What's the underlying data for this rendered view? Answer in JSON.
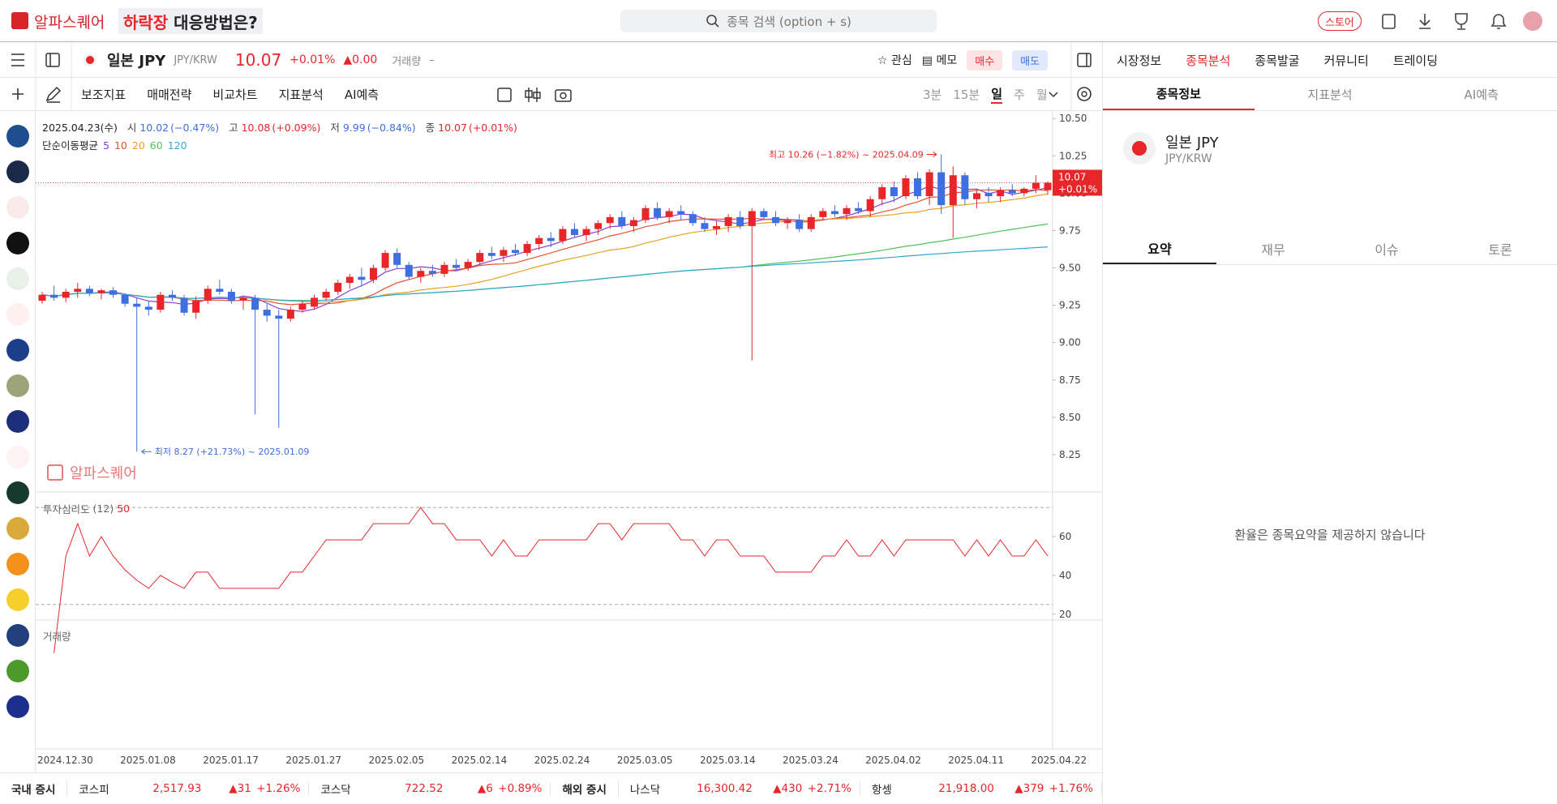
{
  "header": {
    "logo": "알파스퀘어",
    "banner_a": "하락장",
    "banner_b": "대응방법은?",
    "search": "종목 검색 (option + s)",
    "store": "스토어"
  },
  "stock_bar": {
    "name": "일본 JPY",
    "code": "JPY/KRW",
    "price": "10.07",
    "change_pct": "+0.01%",
    "change": "▲0.00",
    "volume_label": "거래량",
    "volume": "–",
    "buttons": [
      "관심",
      "메모",
      "매수",
      "매도"
    ]
  },
  "nav": [
    "시장정보",
    "종목분석",
    "종목발굴",
    "커뮤니티",
    "트레이딩"
  ],
  "toolbar": {
    "tools": [
      "보조지표",
      "매매전략",
      "비교차트",
      "지표분석",
      "AI예측"
    ],
    "periods": [
      "3분",
      "15분",
      "일",
      "주",
      "월"
    ]
  },
  "chart_data": {
    "type": "candlestick",
    "date": "2025.04.23(수)",
    "ohlc_labels": [
      {
        "label": "시",
        "value": "10.02",
        "pct": "(−0.47%)"
      },
      {
        "label": "고",
        "value": "10.08",
        "pct": "(+0.09%)"
      },
      {
        "label": "저",
        "value": "9.99",
        "pct": "(−0.84%)"
      },
      {
        "label": "종",
        "value": "10.07",
        "pct": "(+0.01%)"
      }
    ],
    "ma_label": "단순이동평균",
    "ma": [
      {
        "period": 5,
        "color": "#8a3fd1"
      },
      {
        "period": 10,
        "color": "#e5532d"
      },
      {
        "period": 20,
        "color": "#e8a21c"
      },
      {
        "period": 60,
        "color": "#4fc45a"
      },
      {
        "period": 120,
        "color": "#2fa9cf"
      }
    ],
    "up_color": "#e8262a",
    "down_color": "#3d6fe0",
    "categories": [
      "2024.12.30",
      null,
      null,
      null,
      null,
      null,
      null,
      "2025.01.08",
      null,
      null,
      null,
      null,
      null,
      null,
      "2025.01.17",
      null,
      null,
      null,
      null,
      null,
      null,
      "2025.01.27",
      null,
      null,
      null,
      null,
      null,
      null,
      "2025.02.05",
      null,
      null,
      null,
      null,
      null,
      null,
      "2025.02.14",
      null,
      null,
      null,
      null,
      null,
      null,
      "2025.02.24",
      null,
      null,
      null,
      null,
      null,
      null,
      "2025.03.05",
      null,
      null,
      null,
      null,
      null,
      null,
      "2025.03.14",
      null,
      null,
      null,
      null,
      null,
      null,
      "2025.03.24",
      null,
      null,
      null,
      null,
      null,
      null,
      "2025.04.02",
      null,
      null,
      null,
      null,
      null,
      null,
      "2025.04.11",
      null,
      null,
      null,
      null,
      null,
      null,
      "2025.04.22",
      null
    ],
    "candles": [
      [
        9.28,
        9.34,
        9.26,
        9.32
      ],
      [
        9.32,
        9.38,
        9.28,
        9.3
      ],
      [
        9.3,
        9.36,
        9.27,
        9.34
      ],
      [
        9.34,
        9.4,
        9.3,
        9.36
      ],
      [
        9.36,
        9.38,
        9.31,
        9.33
      ],
      [
        9.33,
        9.36,
        9.29,
        9.35
      ],
      [
        9.35,
        9.37,
        9.3,
        9.32
      ],
      [
        9.32,
        9.33,
        9.24,
        9.26
      ],
      [
        9.26,
        9.3,
        8.27,
        9.24
      ],
      [
        9.24,
        9.28,
        9.18,
        9.22
      ],
      [
        9.22,
        9.34,
        9.2,
        9.32
      ],
      [
        9.32,
        9.35,
        9.28,
        9.3
      ],
      [
        9.3,
        9.32,
        9.18,
        9.2
      ],
      [
        9.2,
        9.31,
        9.16,
        9.28
      ],
      [
        9.28,
        9.38,
        9.26,
        9.36
      ],
      [
        9.36,
        9.42,
        9.32,
        9.34
      ],
      [
        9.34,
        9.36,
        9.26,
        9.28
      ],
      [
        9.28,
        9.31,
        9.22,
        9.3
      ],
      [
        9.3,
        9.32,
        8.52,
        9.22
      ],
      [
        9.22,
        9.26,
        9.14,
        9.18
      ],
      [
        9.18,
        9.22,
        8.43,
        9.16
      ],
      [
        9.16,
        9.24,
        9.14,
        9.22
      ],
      [
        9.22,
        9.28,
        9.2,
        9.26
      ],
      [
        9.24,
        9.32,
        9.22,
        9.3
      ],
      [
        9.3,
        9.36,
        9.28,
        9.34
      ],
      [
        9.34,
        9.42,
        9.32,
        9.4
      ],
      [
        9.4,
        9.46,
        9.36,
        9.44
      ],
      [
        9.44,
        9.5,
        9.38,
        9.42
      ],
      [
        9.42,
        9.52,
        9.4,
        9.5
      ],
      [
        9.5,
        9.62,
        9.48,
        9.6
      ],
      [
        9.6,
        9.63,
        9.5,
        9.52
      ],
      [
        9.52,
        9.54,
        9.42,
        9.44
      ],
      [
        9.44,
        9.5,
        9.4,
        9.48
      ],
      [
        9.48,
        9.52,
        9.44,
        9.46
      ],
      [
        9.46,
        9.54,
        9.44,
        9.52
      ],
      [
        9.52,
        9.56,
        9.48,
        9.5
      ],
      [
        9.5,
        9.56,
        9.48,
        9.54
      ],
      [
        9.54,
        9.62,
        9.52,
        9.6
      ],
      [
        9.6,
        9.64,
        9.56,
        9.58
      ],
      [
        9.58,
        9.64,
        9.54,
        9.62
      ],
      [
        9.62,
        9.66,
        9.58,
        9.6
      ],
      [
        9.6,
        9.68,
        9.58,
        9.66
      ],
      [
        9.66,
        9.72,
        9.62,
        9.7
      ],
      [
        9.7,
        9.74,
        9.64,
        9.68
      ],
      [
        9.68,
        9.78,
        9.66,
        9.76
      ],
      [
        9.76,
        9.8,
        9.7,
        9.72
      ],
      [
        9.72,
        9.78,
        9.68,
        9.76
      ],
      [
        9.76,
        9.82,
        9.72,
        9.8
      ],
      [
        9.8,
        9.86,
        9.76,
        9.84
      ],
      [
        9.84,
        9.88,
        9.76,
        9.78
      ],
      [
        9.78,
        9.84,
        9.74,
        9.82
      ],
      [
        9.82,
        9.92,
        9.8,
        9.9
      ],
      [
        9.9,
        9.94,
        9.82,
        9.84
      ],
      [
        9.84,
        9.9,
        9.8,
        9.88
      ],
      [
        9.88,
        9.92,
        9.82,
        9.86
      ],
      [
        9.86,
        9.88,
        9.78,
        9.8
      ],
      [
        9.8,
        9.84,
        9.74,
        9.76
      ],
      [
        9.76,
        9.82,
        9.72,
        9.78
      ],
      [
        9.78,
        9.86,
        9.74,
        9.84
      ],
      [
        9.84,
        9.88,
        9.76,
        9.78
      ],
      [
        9.78,
        9.9,
        8.88,
        9.88
      ],
      [
        9.88,
        9.9,
        9.82,
        9.84
      ],
      [
        9.84,
        9.88,
        9.78,
        9.8
      ],
      [
        9.8,
        9.84,
        9.76,
        9.82
      ],
      [
        9.82,
        9.86,
        9.74,
        9.76
      ],
      [
        9.76,
        9.86,
        9.74,
        9.84
      ],
      [
        9.84,
        9.9,
        9.82,
        9.88
      ],
      [
        9.88,
        9.92,
        9.84,
        9.86
      ],
      [
        9.86,
        9.92,
        9.82,
        9.9
      ],
      [
        9.9,
        9.94,
        9.86,
        9.88
      ],
      [
        9.88,
        9.98,
        9.84,
        9.96
      ],
      [
        9.96,
        10.06,
        9.92,
        10.04
      ],
      [
        10.04,
        10.08,
        9.94,
        9.98
      ],
      [
        9.98,
        10.12,
        9.96,
        10.1
      ],
      [
        10.1,
        10.14,
        9.96,
        9.98
      ],
      [
        9.98,
        10.16,
        9.92,
        10.14
      ],
      [
        10.14,
        10.26,
        9.86,
        9.92
      ],
      [
        9.92,
        10.18,
        9.7,
        10.12
      ],
      [
        10.12,
        10.14,
        9.92,
        9.96
      ],
      [
        9.96,
        10.02,
        9.9,
        10.0
      ],
      [
        10.0,
        10.04,
        9.94,
        9.98
      ],
      [
        9.98,
        10.04,
        9.94,
        10.02
      ],
      [
        10.02,
        10.06,
        9.98,
        10.0
      ],
      [
        10.0,
        10.04,
        9.98,
        10.03
      ],
      [
        10.03,
        10.12,
        10.0,
        10.07
      ],
      [
        10.02,
        10.08,
        9.99,
        10.07
      ]
    ],
    "ylim": [
      8.0,
      10.55
    ],
    "yticks": [
      {
        "value": 8.25,
        "label": "8.25"
      },
      {
        "value": 8.5,
        "label": "8.50"
      },
      {
        "value": 8.75,
        "label": "8.75"
      },
      {
        "value": 9.0,
        "label": "9.00"
      },
      {
        "value": 9.25,
        "label": "9.25"
      },
      {
        "value": 9.5,
        "label": "9.50"
      },
      {
        "value": 9.75,
        "label": "9.75"
      },
      {
        "value": 10.0,
        "label": "10.00"
      },
      {
        "value": 10.25,
        "label": "10.25"
      },
      {
        "value": 10.5,
        "label": "10.50"
      }
    ],
    "last_label": "10.07",
    "last_pct": "+0.01%",
    "high_note": "최고 10.26 (−1.82%) ~ 2025.04.09",
    "low_note": "최저 8.27 (+21.73%) ~ 2025.01.09",
    "watermark": "알파스퀘어",
    "indicator": {
      "name": "투자심리도",
      "period": 12,
      "value_label": "50",
      "color": "#e8262a",
      "ylim": [
        17,
        83
      ],
      "yticks": [
        20,
        40,
        60
      ],
      "bands": [
        25,
        75
      ]
    },
    "volume_title": "거래량"
  },
  "right_panel": {
    "tabs": [
      "종목정보",
      "지표분석",
      "AI예측"
    ],
    "name": "일본 JPY",
    "code": "JPY/KRW",
    "subtabs": [
      "요약",
      "재무",
      "이슈",
      "토론"
    ],
    "message": "환율은 종목요약을 제공하지 않습니다"
  },
  "footer": {
    "groups": [
      {
        "title": "국내 증시",
        "items": [
          {
            "name": "코스피",
            "value": "2,517.93",
            "change": "▲31",
            "pct": "+1.26%"
          },
          {
            "name": "코스닥",
            "value": "722.52",
            "change": "▲6",
            "pct": "+0.89%"
          }
        ]
      },
      {
        "title": "해외 증시",
        "items": [
          {
            "name": "나스닥",
            "value": "16,300.42",
            "change": "▲430",
            "pct": "+2.71%"
          },
          {
            "name": "항셍",
            "value": "21,918.00",
            "change": "▲379",
            "pct": "+1.76%"
          }
        ]
      }
    ]
  }
}
